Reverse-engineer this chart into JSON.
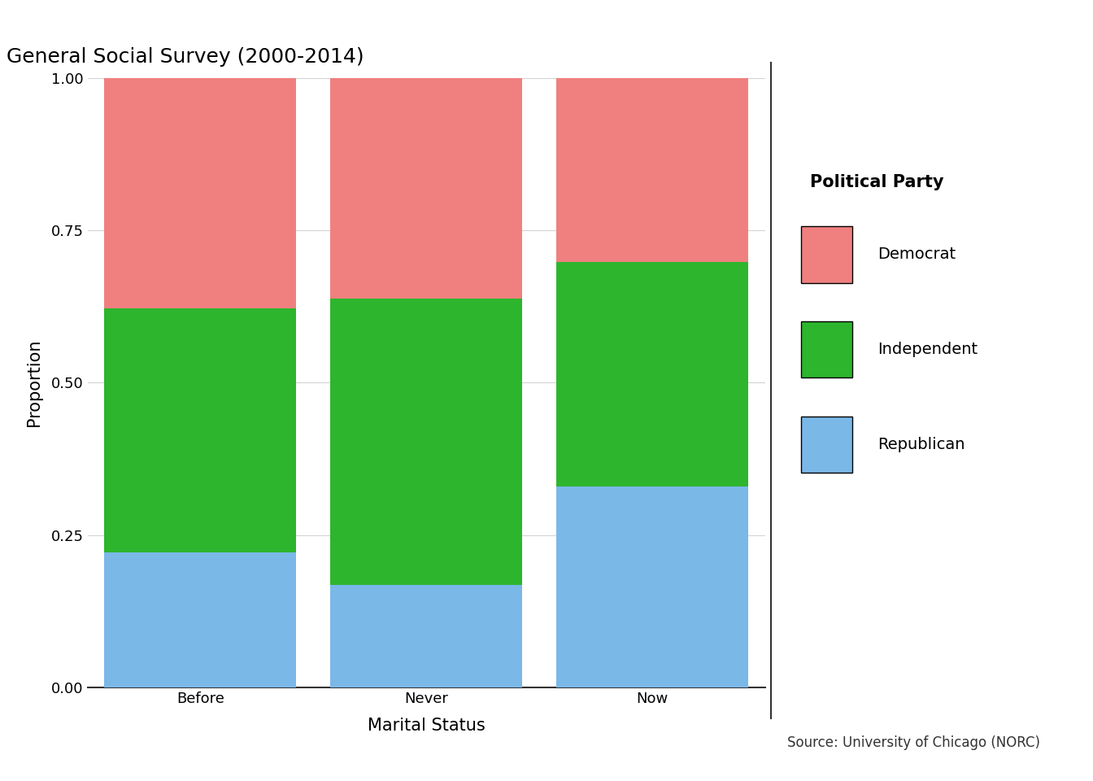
{
  "title": "General Social Survey (2000-2014)",
  "xlabel": "Marital Status",
  "ylabel": "Proportion",
  "source": "Source: University of Chicago (NORC)",
  "categories": [
    "Before",
    "Never",
    "Now"
  ],
  "series": {
    "Republican": [
      0.222,
      0.168,
      0.33
    ],
    "Independent": [
      0.4,
      0.47,
      0.368
    ],
    "Democrat": [
      0.378,
      0.362,
      0.302
    ]
  },
  "colors": {
    "Republican": "#7ab8e8",
    "Independent": "#2db52d",
    "Democrat": "#f08080"
  },
  "legend_title": "Political Party",
  "ylim": [
    0,
    1.0
  ],
  "yticks": [
    0.0,
    0.25,
    0.5,
    0.75,
    1.0
  ],
  "bar_width": 0.85,
  "background_color": "#ffffff",
  "plot_bg_color": "#ffffff",
  "grid_color": "#d3d3d3",
  "title_fontsize": 18,
  "axis_label_fontsize": 15,
  "tick_fontsize": 13,
  "legend_fontsize": 14,
  "legend_title_fontsize": 15,
  "source_fontsize": 12
}
